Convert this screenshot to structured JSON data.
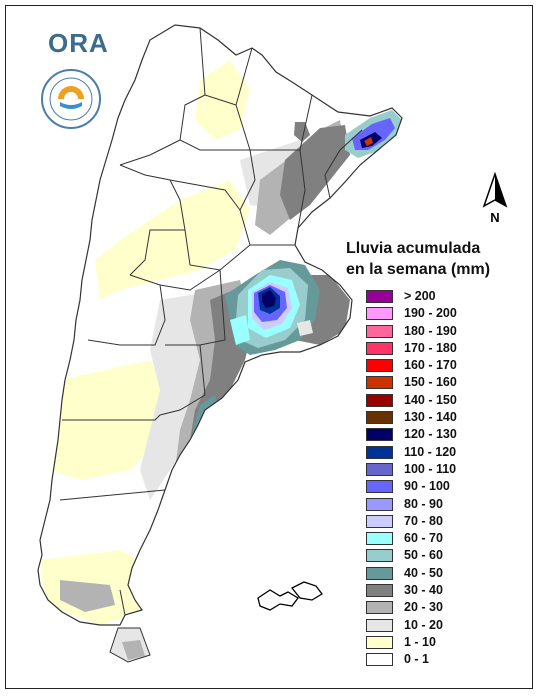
{
  "logo": {
    "text": "ORA",
    "seal_text": "SERVICIO METEOROLÓGICO NACIONAL · ARGENTINA"
  },
  "north_arrow": {
    "label": "N"
  },
  "legend": {
    "title_line1": "Lluvia acumulada",
    "title_line2": "en la semana (mm)",
    "items": [
      {
        "label": "> 200",
        "color": "#990099"
      },
      {
        "label": "190 - 200",
        "color": "#ff99ff"
      },
      {
        "label": "180 - 190",
        "color": "#ff6699"
      },
      {
        "label": "170 - 180",
        "color": "#ff3366"
      },
      {
        "label": "160 - 170",
        "color": "#ff0000"
      },
      {
        "label": "150 - 160",
        "color": "#cc3300"
      },
      {
        "label": "140 - 150",
        "color": "#990000"
      },
      {
        "label": "130 - 140",
        "color": "#663300"
      },
      {
        "label": "120 - 130",
        "color": "#000066"
      },
      {
        "label": "110 - 120",
        "color": "#003399"
      },
      {
        "label": "100 - 110",
        "color": "#6666cc"
      },
      {
        "label": "90 - 100",
        "color": "#6666ff"
      },
      {
        "label": "80 - 90",
        "color": "#9999ff"
      },
      {
        "label": "70 - 80",
        "color": "#ccccff"
      },
      {
        "label": "60 - 70",
        "color": "#99ffff"
      },
      {
        "label": "50 - 60",
        "color": "#99cccc"
      },
      {
        "label": "40 - 50",
        "color": "#669999"
      },
      {
        "label": "30 - 40",
        "color": "#808080"
      },
      {
        "label": "20 - 30",
        "color": "#b3b3b3"
      },
      {
        "label": "10 - 20",
        "color": "#e6e6e6"
      },
      {
        "label": "1 - 10",
        "color": "#ffffcc"
      },
      {
        "label": "0 - 1",
        "color": "#ffffff"
      }
    ]
  }
}
